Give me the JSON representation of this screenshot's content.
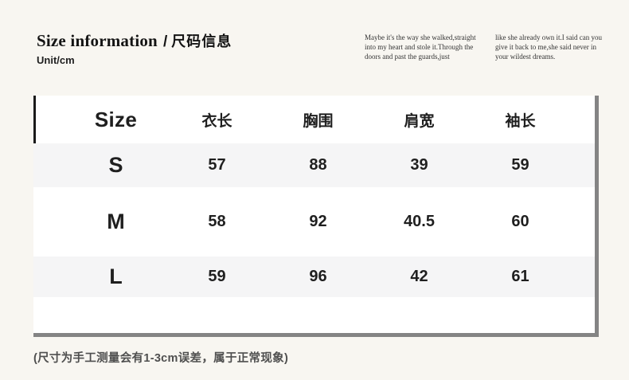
{
  "header": {
    "title_en": "Size information",
    "title_sep": "/",
    "title_zh": "尺码信息",
    "unit": "Unit/cm",
    "lyrics_left": "Maybe it's the way she walked,straight\ninto my heart and stole it.Through the\ndoors and past the guards,just",
    "lyrics_right": "like she already own it.I said can you\ngive it back to me,she said never in\nyour wildest dreams."
  },
  "chart_data": {
    "type": "table",
    "title": "Size information / 尺码信息",
    "unit": "cm",
    "columns": [
      "Size",
      "衣长",
      "胸围",
      "肩宽",
      "袖长"
    ],
    "rows": [
      [
        "S",
        "57",
        "88",
        "39",
        "59"
      ],
      [
        "M",
        "58",
        "92",
        "40.5",
        "60"
      ],
      [
        "L",
        "59",
        "96",
        "42",
        "61"
      ]
    ]
  },
  "footer": {
    "note": "(尺寸为手工测量会有1-3cm误差，属于正常现象)"
  },
  "colors": {
    "background": "#f8f6f1",
    "card": "#ffffff",
    "stripe": "#f5f5f6",
    "shadow": "#848484",
    "header_accent": "#1a1a1a",
    "text": "#1f1f1f",
    "note_text": "#4f4f4f"
  }
}
